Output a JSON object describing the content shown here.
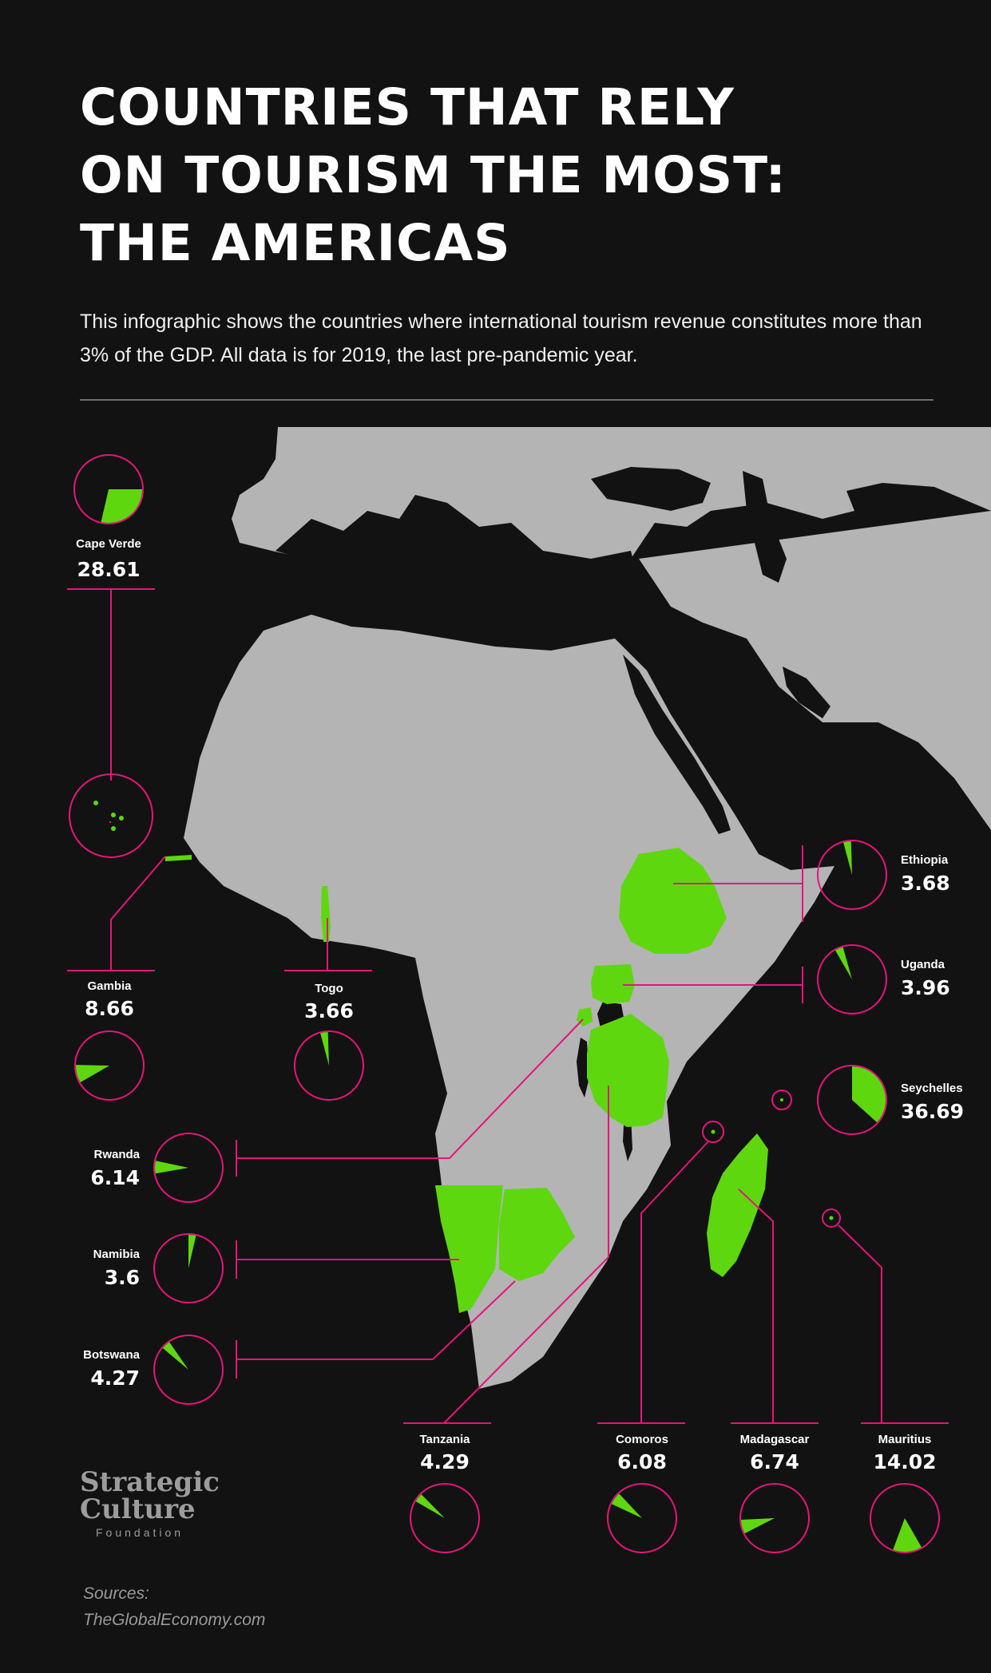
{
  "title_lines": [
    "COUNTRIES THAT RELY",
    "ON TOURISM THE MOST:",
    "THE AMERICAS"
  ],
  "subtitle": "This infographic shows the countries where international tourism revenue constitutes more than 3% of the GDP. All data is for 2019, the last pre-pandemic year.",
  "logo": {
    "line1": "Strategic",
    "line2": "Culture",
    "line3": "Foundation"
  },
  "sources": {
    "label": "Sources:",
    "text": "TheGlobalEconomy.com"
  },
  "colors": {
    "background": "#121212",
    "land": "#b4b4b4",
    "highlight": "#5fd70f",
    "accent": "#e5157a",
    "text": "#ffffff"
  },
  "chart_data": {
    "type": "pie",
    "unit": "% of GDP",
    "year": 2019,
    "series": [
      {
        "name": "Cape Verde",
        "value": 28.61
      },
      {
        "name": "Gambia",
        "value": 8.66
      },
      {
        "name": "Togo",
        "value": 3.66
      },
      {
        "name": "Rwanda",
        "value": 6.14
      },
      {
        "name": "Namibia",
        "value": 3.6
      },
      {
        "name": "Botswana",
        "value": 4.27
      },
      {
        "name": "Ethiopia",
        "value": 3.68
      },
      {
        "name": "Uganda",
        "value": 3.96
      },
      {
        "name": "Seychelles",
        "value": 36.69
      },
      {
        "name": "Tanzania",
        "value": 4.29
      },
      {
        "name": "Comoros",
        "value": 6.08
      },
      {
        "name": "Madagascar",
        "value": 6.74
      },
      {
        "name": "Mauritius",
        "value": 14.02
      }
    ]
  }
}
